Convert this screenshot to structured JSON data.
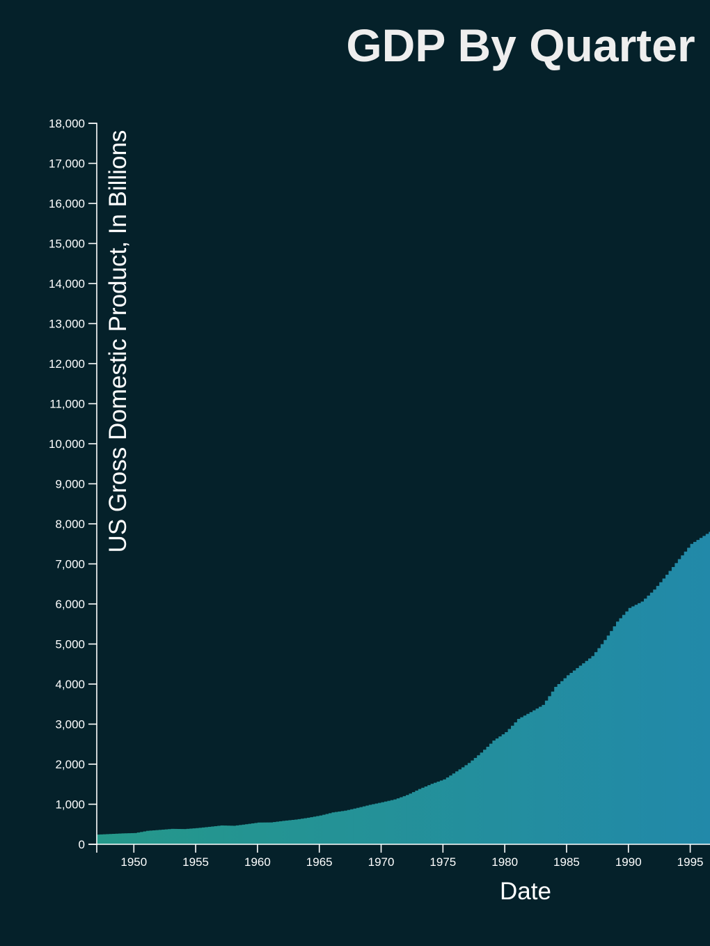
{
  "chart_data": {
    "type": "bar",
    "title": "GDP By Quarter",
    "xlabel": "Date",
    "ylabel": "US Gross Domestic Product, In Billions",
    "x_ticks": [
      "1950",
      "1955",
      "1960",
      "1965",
      "1970",
      "1975",
      "1980",
      "1985",
      "1990",
      "1995"
    ],
    "x_tick_values": [
      1950,
      1955,
      1960,
      1965,
      1970,
      1975,
      1980,
      1985,
      1990,
      1995
    ],
    "y_ticks": [
      "0",
      "1,000",
      "2,000",
      "3,000",
      "4,000",
      "5,000",
      "6,000",
      "7,000",
      "8,000",
      "9,000",
      "10,000",
      "11,000",
      "12,000",
      "13,000",
      "14,000",
      "15,000",
      "16,000",
      "17,000",
      "18,000"
    ],
    "y_tick_values": [
      0,
      1000,
      2000,
      3000,
      4000,
      5000,
      6000,
      7000,
      8000,
      9000,
      10000,
      11000,
      12000,
      13000,
      14000,
      15000,
      16000,
      17000,
      18000
    ],
    "ylim": [
      0,
      18000
    ],
    "xlim": [
      1947,
      1996.6
    ],
    "grid": false,
    "colors": {
      "background": "#05212a",
      "bar_start": "#25988a",
      "bar_end": "#2289a9",
      "axis": "#ffffff",
      "title": "#eeeeee"
    },
    "gdp_anchors": [
      [
        1947.0,
        243
      ],
      [
        1949.0,
        272
      ],
      [
        1950.0,
        281
      ],
      [
        1951.0,
        336
      ],
      [
        1953.0,
        385
      ],
      [
        1954.0,
        380
      ],
      [
        1955.0,
        404
      ],
      [
        1957.0,
        470
      ],
      [
        1958.0,
        462
      ],
      [
        1960.0,
        543
      ],
      [
        1961.0,
        546
      ],
      [
        1962.0,
        585
      ],
      [
        1963.0,
        617
      ],
      [
        1964.0,
        663
      ],
      [
        1965.0,
        719
      ],
      [
        1966.0,
        796
      ],
      [
        1967.0,
        840
      ],
      [
        1968.0,
        910
      ],
      [
        1969.0,
        985
      ],
      [
        1970.0,
        1050
      ],
      [
        1971.0,
        1120
      ],
      [
        1972.0,
        1230
      ],
      [
        1973.0,
        1380
      ],
      [
        1974.0,
        1510
      ],
      [
        1975.0,
        1620
      ],
      [
        1976.0,
        1820
      ],
      [
        1977.0,
        2030
      ],
      [
        1978.0,
        2290
      ],
      [
        1979.0,
        2590
      ],
      [
        1980.0,
        2800
      ],
      [
        1981.0,
        3130
      ],
      [
        1982.0,
        3300
      ],
      [
        1983.0,
        3480
      ],
      [
        1984.0,
        3930
      ],
      [
        1985.0,
        4220
      ],
      [
        1986.0,
        4460
      ],
      [
        1987.0,
        4700
      ],
      [
        1988.0,
        5100
      ],
      [
        1989.0,
        5560
      ],
      [
        1990.0,
        5900
      ],
      [
        1991.0,
        6060
      ],
      [
        1992.0,
        6360
      ],
      [
        1993.0,
        6730
      ],
      [
        1994.0,
        7120
      ],
      [
        1995.0,
        7500
      ],
      [
        1996.5,
        7800
      ]
    ]
  }
}
